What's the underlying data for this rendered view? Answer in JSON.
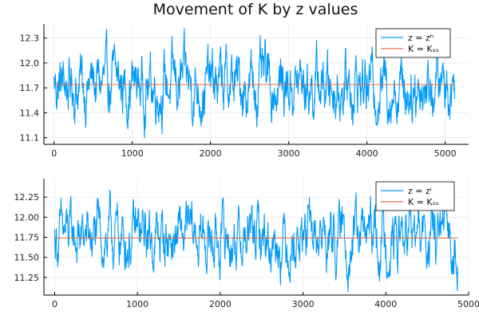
{
  "title": "Movement of K by z values",
  "chart_data": [
    {
      "type": "line",
      "title": "Movement of K by z values",
      "xlim": [
        -130,
        5300
      ],
      "ylim": [
        11.02,
        12.47
      ],
      "xticks": [
        0,
        1000,
        2000,
        3000,
        4000,
        5000
      ],
      "xtick_labels": [
        "0",
        "1000",
        "2000",
        "3000",
        "4000",
        "5000"
      ],
      "yticks": [
        11.1,
        11.4,
        11.7,
        12.0,
        12.3
      ],
      "ytick_labels": [
        "11.1",
        "11.4",
        "11.7",
        "12.0",
        "12.3"
      ],
      "grid": true,
      "legend_position": "top-right",
      "series": [
        {
          "name": "z = zʰ",
          "color": "#009af9",
          "kind": "fluctuating",
          "n": 5120,
          "x_start": 0,
          "x_end": 5120,
          "y_mean": 11.74,
          "y_min": 11.05,
          "y_max": 12.45
        },
        {
          "name": "K = Kₛₛ",
          "color": "#e26f46",
          "kind": "constant",
          "x_start": 0,
          "x_end": 5120,
          "value": 11.74
        }
      ]
    },
    {
      "type": "line",
      "title": "",
      "xlim": [
        -130,
        5000
      ],
      "ylim": [
        11.03,
        12.48
      ],
      "xticks": [
        0,
        1000,
        2000,
        3000,
        4000,
        5000
      ],
      "xtick_labels": [
        "0",
        "1000",
        "2000",
        "3000",
        "4000",
        "5000"
      ],
      "yticks": [
        11.25,
        11.5,
        11.75,
        12.0,
        12.25
      ],
      "ytick_labels": [
        "11.25",
        "11.50",
        "11.75",
        "12.00",
        "12.25"
      ],
      "grid": true,
      "legend_position": "top-right",
      "series": [
        {
          "name": "z = zˡ",
          "color": "#009af9",
          "kind": "fluctuating",
          "n": 4870,
          "x_start": 0,
          "x_end": 4870,
          "y_mean": 11.74,
          "y_min": 11.05,
          "y_max": 12.45
        },
        {
          "name": "K = Kₛₛ",
          "color": "#e26f46",
          "kind": "constant",
          "x_start": 0,
          "x_end": 4870,
          "value": 11.74
        }
      ]
    }
  ]
}
